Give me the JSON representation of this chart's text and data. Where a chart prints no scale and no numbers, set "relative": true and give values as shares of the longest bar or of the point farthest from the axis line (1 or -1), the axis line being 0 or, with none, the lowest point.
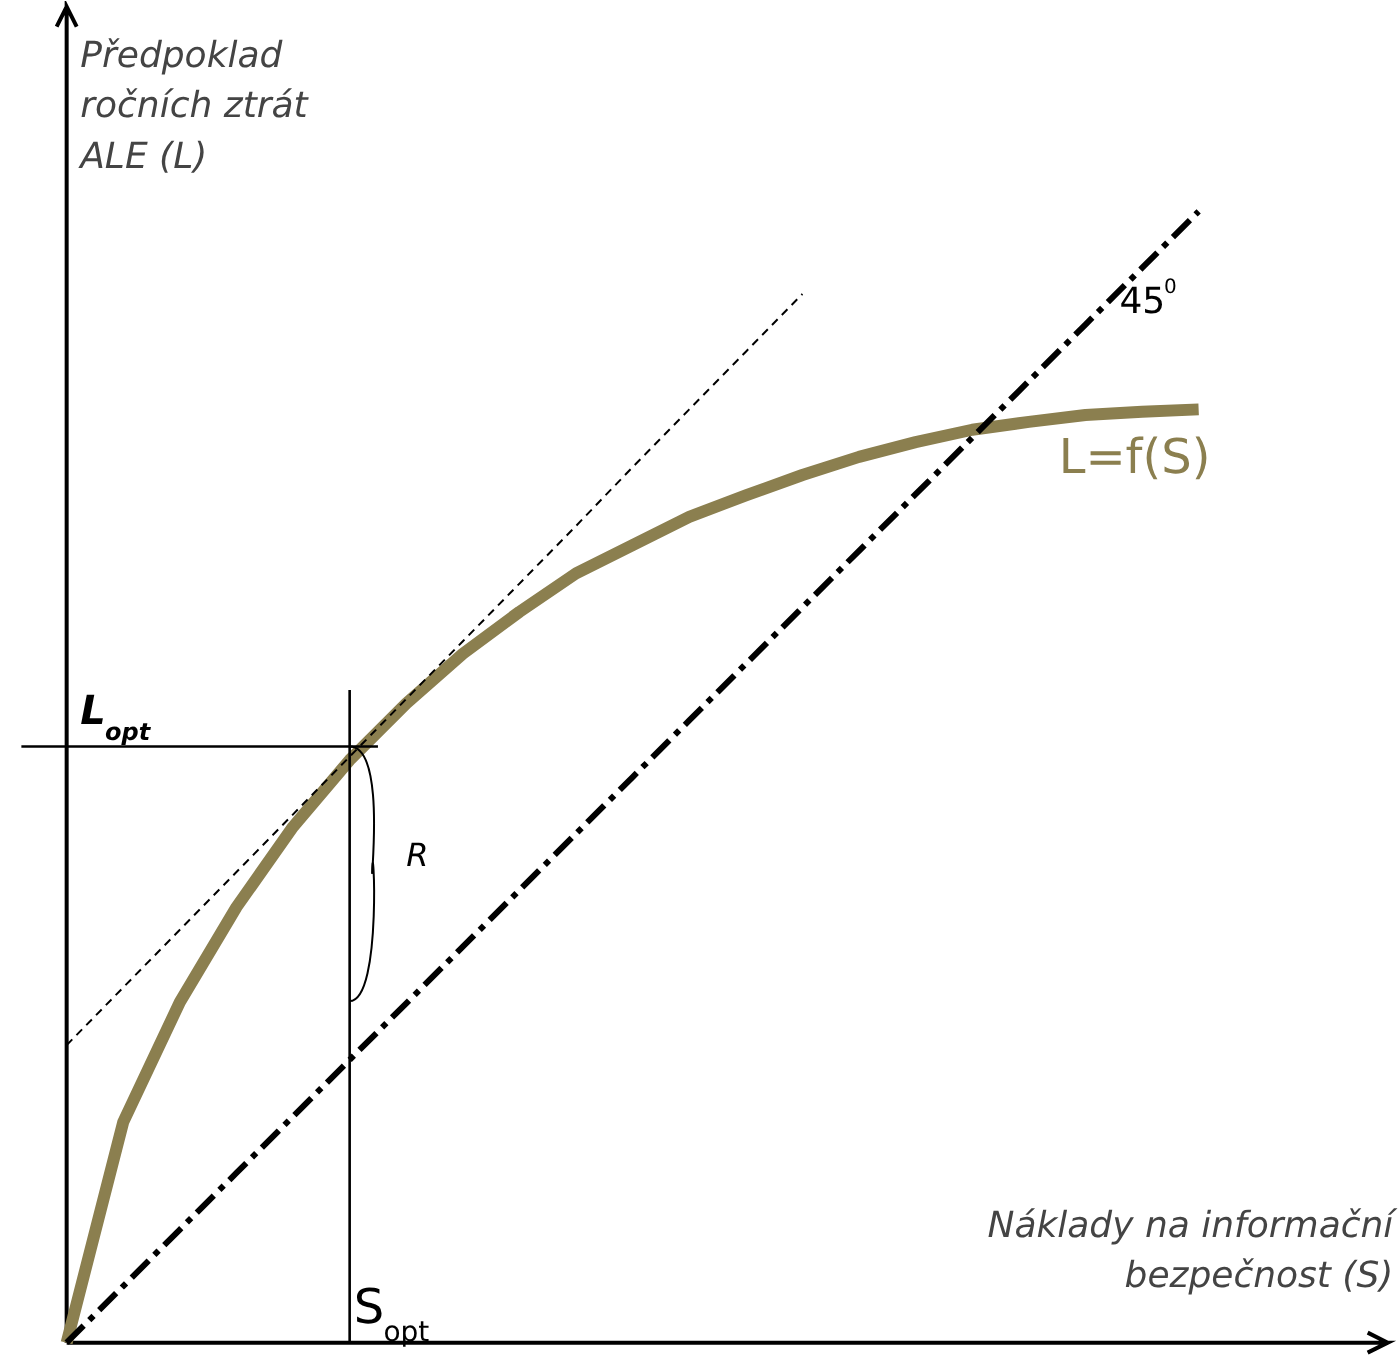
{
  "chart_data": {
    "type": "line",
    "relative": true,
    "xlabel": "Náklady na informační bezpečnost (S)",
    "ylabel": "Předpoklad ročních ztrát ALE (L)",
    "categories": [
      null,
      null,
      null,
      null,
      null,
      null,
      null,
      null,
      null,
      null,
      null,
      null,
      null,
      null,
      null,
      null,
      null,
      null,
      null,
      null,
      null
    ],
    "annotations": [
      "45$^{0}$",
      "R",
      "S$_{opt}$"
    ],
    "ref_lines": [
      {
        "axis": "y",
        "value": 0.527,
        "label": "L$_{opt}$",
        "color": "#000000"
      }
    ],
    "series": [
      {
        "name": "L=f(S)",
        "color": "#8b7f4f",
        "line_style": "solid",
        "values": [
          0,
          0.195,
          0.301,
          0.385,
          0.456,
          0.515,
          0.565,
          0.609,
          0.646,
          0.68,
          0.705,
          0.73,
          0.749,
          0.767,
          0.783,
          0.796,
          0.807,
          0.814,
          0.82,
          0.823,
          0.825
        ]
      },
      {
        "color": "#000000",
        "line_style": "dashed",
        "values": [
          0.263,
          0.314,
          0.365,
          0.416,
          0.467,
          0.518,
          0.569,
          0.62,
          0.671,
          0.722,
          0.774,
          0.825,
          0.876,
          0.927,
          null,
          null,
          null,
          null,
          null,
          null,
          null
        ]
      },
      {
        "color": "#000000",
        "line_style": "dashdot",
        "values": [
          0,
          0.05,
          0.1,
          0.15,
          0.2,
          0.25,
          0.3,
          0.35,
          0.4,
          0.45,
          0.5,
          0.55,
          0.6,
          0.65,
          0.7,
          0.75,
          0.8,
          0.85,
          0.9,
          0.95,
          1.0
        ]
      }
    ]
  }
}
